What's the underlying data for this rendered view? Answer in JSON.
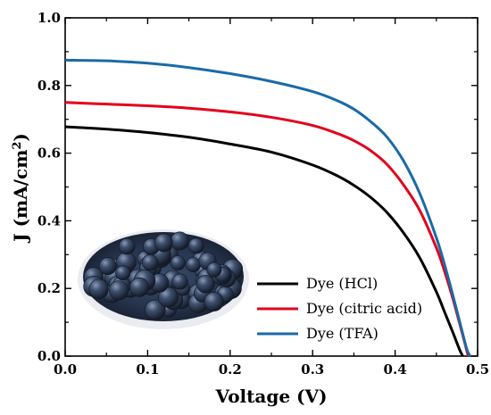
{
  "chart_data": {
    "type": "line",
    "xlabel": "Voltage (V)",
    "ylabel_main": "J (mA/cm",
    "ylabel_sup": "2",
    "ylabel_close": ")",
    "xlim": [
      0.0,
      0.5
    ],
    "ylim": [
      0.0,
      1.0
    ],
    "x_ticks": [
      "0.0",
      "0.1",
      "0.2",
      "0.3",
      "0.4",
      "0.5"
    ],
    "y_ticks": [
      "0.0",
      "0.2",
      "0.4",
      "0.6",
      "0.8",
      "1.0"
    ],
    "legend_position": "bottom-right",
    "grid": false,
    "inset_image": "blueberries-photo",
    "series": [
      {
        "name": "Dye (HCl)",
        "color": "#000000",
        "points": [
          [
            0.0,
            0.678
          ],
          [
            0.05,
            0.671
          ],
          [
            0.1,
            0.661
          ],
          [
            0.15,
            0.647
          ],
          [
            0.2,
            0.627
          ],
          [
            0.25,
            0.603
          ],
          [
            0.3,
            0.565
          ],
          [
            0.33,
            0.533
          ],
          [
            0.35,
            0.505
          ],
          [
            0.37,
            0.47
          ],
          [
            0.39,
            0.425
          ],
          [
            0.41,
            0.365
          ],
          [
            0.43,
            0.29
          ],
          [
            0.45,
            0.19
          ],
          [
            0.46,
            0.13
          ],
          [
            0.47,
            0.07
          ],
          [
            0.478,
            0.02
          ],
          [
            0.482,
            0.0
          ]
        ]
      },
      {
        "name": "Dye (citric acid)",
        "color": "#e3001b",
        "points": [
          [
            0.0,
            0.75
          ],
          [
            0.05,
            0.745
          ],
          [
            0.1,
            0.74
          ],
          [
            0.15,
            0.733
          ],
          [
            0.2,
            0.722
          ],
          [
            0.25,
            0.706
          ],
          [
            0.3,
            0.682
          ],
          [
            0.33,
            0.658
          ],
          [
            0.35,
            0.637
          ],
          [
            0.37,
            0.608
          ],
          [
            0.39,
            0.567
          ],
          [
            0.41,
            0.507
          ],
          [
            0.43,
            0.43
          ],
          [
            0.45,
            0.32
          ],
          [
            0.46,
            0.25
          ],
          [
            0.47,
            0.17
          ],
          [
            0.48,
            0.08
          ],
          [
            0.487,
            0.015
          ],
          [
            0.489,
            0.0
          ]
        ]
      },
      {
        "name": "Dye (TFA)",
        "color": "#1a6aa8",
        "points": [
          [
            0.0,
            0.875
          ],
          [
            0.05,
            0.873
          ],
          [
            0.1,
            0.866
          ],
          [
            0.15,
            0.853
          ],
          [
            0.2,
            0.835
          ],
          [
            0.25,
            0.812
          ],
          [
            0.3,
            0.782
          ],
          [
            0.33,
            0.755
          ],
          [
            0.35,
            0.73
          ],
          [
            0.37,
            0.694
          ],
          [
            0.39,
            0.648
          ],
          [
            0.41,
            0.578
          ],
          [
            0.43,
            0.48
          ],
          [
            0.45,
            0.35
          ],
          [
            0.46,
            0.27
          ],
          [
            0.47,
            0.18
          ],
          [
            0.48,
            0.085
          ],
          [
            0.487,
            0.02
          ],
          [
            0.491,
            0.0
          ]
        ]
      }
    ]
  }
}
